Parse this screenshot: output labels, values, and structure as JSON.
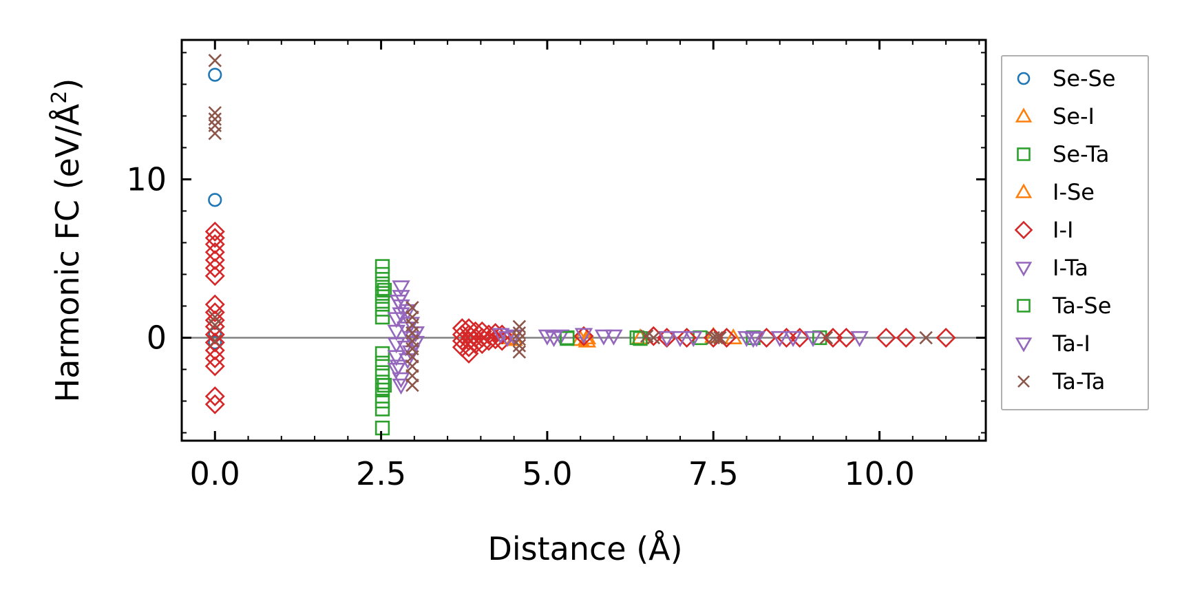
{
  "chart_data": {
    "type": "scatter",
    "xlabel": "Distance (Å)",
    "ylabel_main": "Harmonic FC (eV/Å",
    "ylabel_sup": "2",
    "ylabel_close": ")",
    "xlim": [
      -0.5,
      11.6
    ],
    "ylim": [
      -6.5,
      18.8
    ],
    "x_ticks": [
      0,
      2.5,
      5,
      7.5,
      10
    ],
    "x_tick_labels": [
      "0.0",
      "2.5",
      "5.0",
      "7.5",
      "10.0"
    ],
    "y_ticks": [
      0,
      10
    ],
    "y_tick_labels": [
      "0",
      "10"
    ],
    "zero_line": 0,
    "legend_position": "outside-right",
    "series": [
      {
        "name": "Se-Se",
        "marker": "circle",
        "color": "#1f77b4",
        "points": [
          [
            0,
            16.6
          ],
          [
            0,
            8.7
          ],
          [
            0,
            0.2
          ],
          [
            0,
            -0.3
          ]
        ]
      },
      {
        "name": "Se-I",
        "marker": "triangle-up",
        "color": "#ff7f0e",
        "points": [
          [
            4.4,
            0.0
          ],
          [
            5.5,
            -0.1
          ],
          [
            5.6,
            -0.2
          ],
          [
            6.4,
            0.0
          ],
          [
            7.8,
            0.0
          ]
        ]
      },
      {
        "name": "Se-Ta",
        "marker": "square",
        "color": "#2ca02c",
        "points": [
          [
            2.52,
            4.5
          ],
          [
            2.52,
            4.0
          ],
          [
            2.52,
            3.4
          ],
          [
            2.52,
            2.8
          ],
          [
            2.52,
            2.3
          ],
          [
            2.52,
            1.8
          ],
          [
            2.52,
            1.3
          ],
          [
            2.52,
            -1.0
          ],
          [
            2.52,
            -1.6
          ],
          [
            2.52,
            -2.2
          ],
          [
            2.52,
            -2.8
          ],
          [
            2.52,
            -3.3
          ],
          [
            2.52,
            -4.0
          ],
          [
            2.52,
            -4.5
          ],
          [
            2.52,
            -5.7
          ],
          [
            5.3,
            0.0
          ],
          [
            6.35,
            0.0
          ],
          [
            7.3,
            0.0
          ],
          [
            8.1,
            0.0
          ],
          [
            9.1,
            0.0
          ]
        ]
      },
      {
        "name": "I-Se",
        "marker": "triangle-up",
        "color": "#ff7f0e",
        "points": [
          [
            4.5,
            -0.1
          ],
          [
            5.6,
            0.0
          ],
          [
            7.5,
            0.1
          ]
        ]
      },
      {
        "name": "I-I",
        "marker": "diamond",
        "color": "#d62728",
        "points": [
          [
            0,
            6.7
          ],
          [
            0,
            6.3
          ],
          [
            0,
            5.9
          ],
          [
            0,
            5.4
          ],
          [
            0,
            4.9
          ],
          [
            0,
            4.4
          ],
          [
            0,
            3.9
          ],
          [
            0,
            2.1
          ],
          [
            0,
            1.6
          ],
          [
            0,
            1.1
          ],
          [
            0,
            0.7
          ],
          [
            0,
            0.2
          ],
          [
            0,
            -0.3
          ],
          [
            0,
            -0.8
          ],
          [
            0,
            -1.3
          ],
          [
            0,
            -1.8
          ],
          [
            0,
            -3.7
          ],
          [
            0,
            -4.2
          ],
          [
            3.72,
            0.6
          ],
          [
            3.72,
            0.2
          ],
          [
            3.72,
            -0.2
          ],
          [
            3.72,
            -0.6
          ],
          [
            3.82,
            0.6
          ],
          [
            3.82,
            0.2
          ],
          [
            3.82,
            -0.2
          ],
          [
            3.82,
            -0.6
          ],
          [
            3.82,
            -1.0
          ],
          [
            3.92,
            0.4
          ],
          [
            3.92,
            0.0
          ],
          [
            3.92,
            -0.4
          ],
          [
            4.02,
            0.4
          ],
          [
            4.02,
            0.0
          ],
          [
            4.02,
            -0.4
          ],
          [
            4.12,
            0.2
          ],
          [
            4.12,
            -0.2
          ],
          [
            4.22,
            0.3
          ],
          [
            4.22,
            -0.1
          ],
          [
            4.32,
            0.2
          ],
          [
            4.32,
            -0.2
          ],
          [
            5.55,
            0.1
          ],
          [
            6.6,
            0.1
          ],
          [
            6.8,
            0.0
          ],
          [
            7.1,
            0.0
          ],
          [
            7.5,
            0.0
          ],
          [
            7.7,
            0.0
          ],
          [
            8.3,
            0.0
          ],
          [
            8.6,
            0.0
          ],
          [
            8.8,
            0.0
          ],
          [
            9.3,
            0.0
          ],
          [
            9.5,
            0.0
          ],
          [
            10.1,
            0.0
          ],
          [
            10.4,
            0.0
          ],
          [
            11.0,
            0.0
          ]
        ]
      },
      {
        "name": "I-Ta",
        "marker": "triangle-down",
        "color": "#9467bd",
        "points": [
          [
            2.73,
            1.2
          ],
          [
            2.73,
            0.4
          ],
          [
            2.73,
            -0.4
          ],
          [
            2.73,
            -1.2
          ],
          [
            2.73,
            -2.0
          ],
          [
            2.8,
            3.2
          ],
          [
            2.8,
            2.6
          ],
          [
            2.8,
            2.0
          ],
          [
            2.8,
            1.5
          ],
          [
            2.8,
            -2.6
          ],
          [
            2.8,
            -3.0
          ],
          [
            2.87,
            0.6
          ],
          [
            2.87,
            -0.6
          ],
          [
            2.95,
            0.9
          ],
          [
            2.95,
            0.0
          ],
          [
            2.95,
            -0.9
          ],
          [
            3.02,
            0.3
          ],
          [
            3.02,
            -0.3
          ],
          [
            4.3,
            0.2
          ],
          [
            4.4,
            0.0
          ],
          [
            5.0,
            0.1
          ],
          [
            5.2,
            0.1
          ],
          [
            5.55,
            0.2
          ],
          [
            5.85,
            0.1
          ],
          [
            6.0,
            0.1
          ],
          [
            6.8,
            0.0
          ],
          [
            7.0,
            0.0
          ],
          [
            8.0,
            0.0
          ],
          [
            8.15,
            0.0
          ],
          [
            8.5,
            0.0
          ],
          [
            8.7,
            0.0
          ],
          [
            9.0,
            0.0
          ],
          [
            9.7,
            0.0
          ]
        ]
      },
      {
        "name": "Ta-Se",
        "marker": "square",
        "color": "#2ca02c",
        "points": [
          [
            2.55,
            3.0
          ],
          [
            2.55,
            -3.0
          ],
          [
            5.3,
            -0.05
          ],
          [
            6.4,
            -0.05
          ]
        ]
      },
      {
        "name": "Ta-I",
        "marker": "triangle-down",
        "color": "#9467bd",
        "points": [
          [
            2.76,
            -1.8
          ],
          [
            2.76,
            2.3
          ],
          [
            2.9,
            1.7
          ],
          [
            2.9,
            -1.4
          ],
          [
            4.5,
            0.1
          ],
          [
            5.1,
            0.0
          ],
          [
            7.2,
            0.0
          ],
          [
            8.1,
            -0.05
          ]
        ]
      },
      {
        "name": "Ta-Ta",
        "marker": "x",
        "color": "#8c564b",
        "points": [
          [
            0,
            17.5
          ],
          [
            0,
            14.2
          ],
          [
            0,
            13.8
          ],
          [
            0,
            13.4
          ],
          [
            0,
            12.9
          ],
          [
            0,
            1.3
          ],
          [
            0,
            0.8
          ],
          [
            0,
            -0.2
          ],
          [
            2.97,
            1.9
          ],
          [
            2.97,
            1.3
          ],
          [
            2.97,
            0.8
          ],
          [
            2.97,
            0.3
          ],
          [
            2.97,
            -0.2
          ],
          [
            2.97,
            -0.7
          ],
          [
            2.97,
            -1.2
          ],
          [
            2.97,
            -1.8
          ],
          [
            2.97,
            -2.4
          ],
          [
            2.97,
            -3.0
          ],
          [
            4.58,
            0.7
          ],
          [
            4.58,
            0.3
          ],
          [
            4.58,
            -0.1
          ],
          [
            4.58,
            -0.5
          ],
          [
            4.58,
            -0.9
          ],
          [
            6.5,
            0.1
          ],
          [
            6.6,
            0.0
          ],
          [
            7.5,
            0.0
          ],
          [
            7.55,
            0.0
          ],
          [
            7.6,
            0.0
          ],
          [
            9.2,
            0.0
          ],
          [
            10.7,
            0.0
          ]
        ]
      }
    ]
  }
}
